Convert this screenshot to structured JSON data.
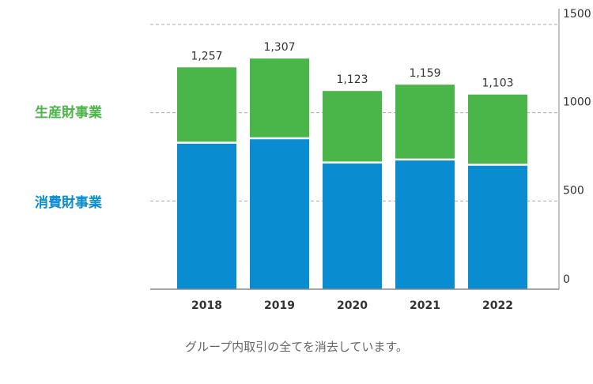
{
  "chart_data": {
    "type": "bar",
    "stacked": true,
    "categories": [
      "2018",
      "2019",
      "2020",
      "2021",
      "2022"
    ],
    "series": [
      {
        "name": "消費財事業",
        "color": "#0a8dd0",
        "values": [
          830,
          855,
          718,
          735,
          705
        ]
      },
      {
        "name": "生産財事業",
        "color": "#4ab548",
        "values": [
          427,
          452,
          405,
          424,
          398
        ]
      }
    ],
    "totals": [
      "1,257",
      "1,307",
      "1,123",
      "1,159",
      "1,103"
    ],
    "yticks": [
      "0",
      "500",
      "1000",
      "1500"
    ],
    "ylim": [
      0,
      1500
    ],
    "grid": true,
    "legend_placement": "left"
  },
  "note": "グループ内取引の全てを消去しています。"
}
